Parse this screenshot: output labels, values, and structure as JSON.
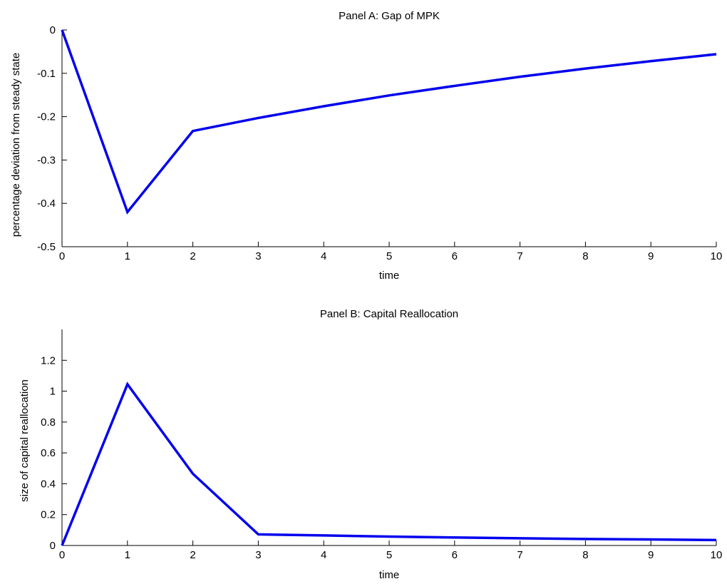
{
  "chart_data": [
    {
      "type": "line",
      "title": "Panel A: Gap of MPK",
      "xlabel": "time",
      "ylabel": "percentage deviation from steady state",
      "xlim": [
        0,
        10
      ],
      "ylim": [
        -0.5,
        0
      ],
      "x_ticks": [
        0,
        1,
        2,
        3,
        4,
        5,
        6,
        7,
        8,
        9,
        10
      ],
      "y_ticks": [
        -0.5,
        -0.4,
        -0.3,
        -0.2,
        -0.1,
        0
      ],
      "y_tick_labels": [
        "-0.5",
        "-0.4",
        "-0.3",
        "-0.2",
        "-0.1",
        "0"
      ],
      "grid": false,
      "series": [
        {
          "color": "#0000ee",
          "x": [
            0,
            1,
            2,
            3,
            4,
            5,
            6,
            7,
            8,
            9,
            10
          ],
          "values": [
            0,
            -0.42,
            -0.233,
            -0.203,
            -0.176,
            -0.151,
            -0.129,
            -0.108,
            -0.089,
            -0.072,
            -0.056
          ]
        }
      ]
    },
    {
      "type": "line",
      "title": "Panel B: Capital Reallocation",
      "xlabel": "time",
      "ylabel": "size of capital reallocation",
      "xlim": [
        0,
        10
      ],
      "ylim": [
        0,
        1.4
      ],
      "x_ticks": [
        0,
        1,
        2,
        3,
        4,
        5,
        6,
        7,
        8,
        9,
        10
      ],
      "y_ticks": [
        0,
        0.2,
        0.4,
        0.6,
        0.8,
        1,
        1.2
      ],
      "y_tick_labels": [
        "0",
        "0.2",
        "0.4",
        "0.6",
        "0.8",
        "1",
        "1.2"
      ],
      "grid": false,
      "series": [
        {
          "color": "#0000ee",
          "x": [
            0,
            1,
            2,
            3,
            4,
            5,
            6,
            7,
            8,
            9,
            10
          ],
          "values": [
            0,
            1.045,
            0.465,
            0.072,
            0.065,
            0.058,
            0.052,
            0.047,
            0.042,
            0.039,
            0.035
          ]
        }
      ]
    }
  ]
}
